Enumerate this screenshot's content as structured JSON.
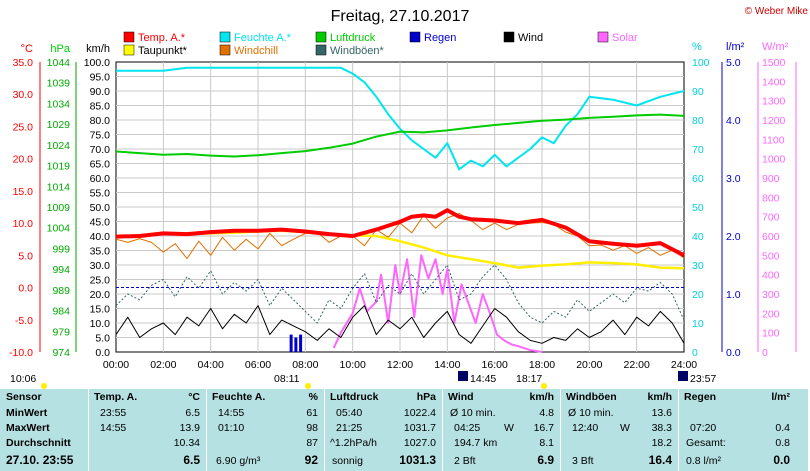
{
  "chart_data": {
    "type": "line",
    "title": "Freitag, 27.10.2017",
    "copyright": "© Weber Mike",
    "x_ticks": [
      "00:00",
      "02:00",
      "04:00",
      "06:00",
      "08:00",
      "10:00",
      "12:00",
      "14:00",
      "16:00",
      "18:00",
      "20:00",
      "22:00",
      "24:00"
    ],
    "x_range_hours": [
      0,
      24
    ],
    "axes": {
      "temp": {
        "unit": "°C",
        "ticks": [
          "35.0",
          "30.0",
          "25.0",
          "20.0",
          "15.0",
          "10.0",
          "5.0",
          "0.0",
          "-5.0",
          "-10.0"
        ],
        "range": [
          -10,
          35
        ],
        "color": "#ff0000"
      },
      "press": {
        "unit": "hPa",
        "ticks": [
          "1044",
          "1039",
          "1034",
          "1029",
          "1024",
          "1019",
          "1014",
          "1009",
          "1004",
          "999",
          "994",
          "989",
          "984",
          "979",
          "974"
        ],
        "range": [
          974,
          1044
        ],
        "color": "#00cc00"
      },
      "wind": {
        "unit": "km/h",
        "ticks": [
          "100.0",
          "95.0",
          "90.0",
          "85.0",
          "80.0",
          "75.0",
          "70.0",
          "65.0",
          "60.0",
          "55.0",
          "50.0",
          "45.0",
          "40.0",
          "35.0",
          "30.0",
          "25.0",
          "20.0",
          "15.0",
          "10.0",
          "5.0",
          "0.0"
        ],
        "range": [
          0,
          100
        ],
        "color": "#000000"
      },
      "hum": {
        "unit": "%",
        "ticks": [
          "100",
          "90",
          "80",
          "70",
          "60",
          "50",
          "40",
          "30",
          "20",
          "10",
          "0"
        ],
        "range": [
          0,
          100
        ],
        "color": "#00e5ee"
      },
      "rain": {
        "unit": "l/m²",
        "ticks": [
          "5.0",
          "4.0",
          "3.0",
          "2.0",
          "1.0",
          "0.0"
        ],
        "range": [
          0,
          5
        ],
        "color": "#0000cc"
      },
      "solar": {
        "unit": "W/m²",
        "ticks": [
          "1500",
          "1400",
          "1300",
          "1200",
          "1100",
          "1000",
          "900",
          "800",
          "700",
          "600",
          "500",
          "400",
          "300",
          "200",
          "100",
          "0"
        ],
        "range": [
          0,
          1500
        ],
        "color": "#ff66ff"
      }
    },
    "legend": [
      {
        "label": "Temp. A.*",
        "color": "#ff0000"
      },
      {
        "label": "Feuchte A.*",
        "color": "#00e5ee"
      },
      {
        "label": "Luftdruck",
        "color": "#00cc00"
      },
      {
        "label": "Regen",
        "color": "#0000cc"
      },
      {
        "label": "Wind",
        "color": "#000000"
      },
      {
        "label": "Solar",
        "color": "#ff66ff"
      },
      {
        "label": "Taupunkt*",
        "color": "#ffff00"
      },
      {
        "label": "Windchill",
        "color": "#e07000"
      },
      {
        "label": "Windböen*",
        "color": "#336666"
      }
    ],
    "series": [
      {
        "name": "Temp. A.*",
        "axis": "temp",
        "x": [
          0,
          1,
          2,
          3,
          4,
          5,
          6,
          7,
          8,
          9,
          10,
          11,
          12,
          12.5,
          13,
          13.5,
          14,
          14.5,
          15,
          16,
          17,
          18,
          19,
          20,
          21,
          22,
          23,
          24
        ],
        "y": [
          7.9,
          8.0,
          8.4,
          8.3,
          8.6,
          8.8,
          8.8,
          9.0,
          8.7,
          8.3,
          8.0,
          9.0,
          10.2,
          11.0,
          11.2,
          11.0,
          12.0,
          11.0,
          10.6,
          10.4,
          10.0,
          10.5,
          9.3,
          7.2,
          6.8,
          6.5,
          6.9,
          5.0
        ]
      },
      {
        "name": "Taupunkt*",
        "axis": "temp",
        "x": [
          0,
          1,
          2,
          3,
          4,
          5,
          6,
          7,
          8,
          9,
          10,
          11,
          12,
          13,
          14,
          15,
          16,
          17,
          18,
          19,
          20,
          21,
          22,
          23,
          24
        ],
        "y": [
          8.0,
          8.1,
          8.3,
          8.3,
          8.4,
          8.5,
          8.7,
          8.8,
          8.6,
          8.3,
          8.1,
          8.0,
          7.2,
          6.2,
          5.0,
          4.4,
          3.8,
          3.1,
          3.4,
          3.6,
          3.9,
          3.8,
          3.6,
          3.1,
          3.0
        ]
      },
      {
        "name": "Feuchte A.*",
        "axis": "hum",
        "x": [
          0,
          1,
          2,
          3,
          4,
          5,
          6,
          7,
          8,
          9,
          9.5,
          10,
          10.5,
          11,
          11.5,
          12,
          12.5,
          13,
          13.5,
          14,
          14.5,
          15,
          15.5,
          16,
          16.5,
          17,
          17.5,
          18,
          18.5,
          19,
          19.5,
          20,
          21,
          22,
          23,
          24
        ],
        "y": [
          97,
          97,
          97,
          98,
          98,
          98,
          98,
          98,
          98,
          98,
          98,
          96,
          93,
          88,
          82,
          77,
          73,
          70,
          67,
          72,
          63,
          66,
          64,
          68,
          64,
          67,
          70,
          74,
          72,
          78,
          82,
          88,
          87,
          85,
          88,
          90
        ]
      },
      {
        "name": "Luftdruck",
        "axis": "press",
        "x": [
          0,
          1,
          2,
          3,
          4,
          5,
          6,
          7,
          8,
          9,
          10,
          11,
          12,
          13,
          14,
          15,
          16,
          17,
          18,
          19,
          20,
          21,
          22,
          23,
          24
        ],
        "y": [
          1022.4,
          1022.0,
          1021.6,
          1021.8,
          1021.4,
          1021.2,
          1021.5,
          1022.0,
          1022.5,
          1023.3,
          1024.3,
          1026.0,
          1027.2,
          1027.0,
          1027.5,
          1028.2,
          1028.8,
          1029.3,
          1029.8,
          1030.1,
          1030.5,
          1030.8,
          1031.1,
          1031.3,
          1031.0
        ]
      },
      {
        "name": "Wind",
        "axis": "wind",
        "x": [
          0,
          0.5,
          1,
          1.5,
          2,
          2.5,
          3,
          3.5,
          4,
          4.5,
          5,
          5.5,
          6,
          6.5,
          7,
          7.5,
          8,
          8.5,
          9,
          9.5,
          10,
          10.5,
          11,
          11.5,
          12,
          12.5,
          13,
          13.5,
          14,
          14.5,
          15,
          15.5,
          16,
          16.5,
          17,
          17.5,
          18,
          18.5,
          19,
          19.5,
          20,
          20.5,
          21,
          21.5,
          22,
          22.5,
          23,
          23.5,
          24
        ],
        "y": [
          6,
          12,
          5,
          8,
          10,
          6,
          12,
          9,
          15,
          8,
          13,
          10,
          16,
          6,
          11,
          9,
          7,
          4,
          8,
          5,
          12,
          16,
          6,
          11,
          8,
          12,
          5,
          10,
          14,
          6,
          3,
          9,
          15,
          12,
          7,
          4,
          3,
          5,
          4,
          8,
          5,
          7,
          11,
          6,
          12,
          9,
          14,
          10,
          3
        ]
      },
      {
        "name": "Windböen*",
        "axis": "wind",
        "x": [
          0,
          0.5,
          1,
          1.5,
          2,
          2.5,
          3,
          3.5,
          4,
          4.5,
          5,
          5.5,
          6,
          6.5,
          7,
          7.5,
          8,
          8.5,
          9,
          9.5,
          10,
          10.5,
          11,
          11.5,
          12,
          12.5,
          13,
          13.5,
          14,
          14.5,
          15,
          15.5,
          16,
          16.5,
          17,
          17.5,
          18,
          18.5,
          19,
          19.5,
          20,
          20.5,
          21,
          21.5,
          22,
          22.5,
          23,
          23.5,
          24
        ],
        "y": [
          16,
          20,
          18,
          23,
          25,
          19,
          26,
          22,
          28,
          20,
          24,
          21,
          25,
          16,
          22,
          18,
          14,
          10,
          18,
          15,
          22,
          27,
          17,
          23,
          20,
          27,
          20,
          25,
          30,
          18,
          20,
          26,
          30,
          25,
          17,
          12,
          10,
          14,
          12,
          18,
          14,
          17,
          20,
          17,
          22,
          21,
          24,
          20,
          11
        ]
      },
      {
        "name": "Windchill",
        "axis": "temp",
        "x": [
          0,
          0.5,
          1,
          1.5,
          2,
          2.5,
          3,
          3.5,
          4,
          4.5,
          5,
          5.5,
          6,
          6.5,
          7,
          7.5,
          8,
          8.5,
          9,
          9.5,
          10,
          10.5,
          11,
          11.5,
          12,
          12.5,
          13,
          13.5,
          14,
          14.5,
          15,
          15.5,
          16,
          16.5,
          17,
          17.5,
          18,
          18.5,
          19,
          19.5,
          20,
          20.5,
          21,
          21.5,
          22,
          22.5,
          23,
          23.5,
          24
        ],
        "y": [
          7.5,
          7.0,
          7.6,
          7.0,
          5.5,
          6.8,
          4.5,
          7.2,
          5.0,
          7.8,
          5.8,
          7.5,
          6.0,
          8.4,
          6.5,
          7.5,
          8.4,
          8.6,
          7.0,
          8.0,
          8.0,
          6.5,
          9.0,
          7.8,
          10.0,
          8.5,
          11.2,
          9.2,
          10.8,
          11.5,
          10.4,
          9.0,
          10.0,
          9.0,
          9.8,
          10.0,
          10.1,
          9.8,
          8.6,
          8.0,
          6.5,
          6.6,
          5.8,
          6.5,
          5.3,
          6.2,
          5.0,
          5.8,
          4.6
        ]
      },
      {
        "name": "Solar",
        "axis": "solar",
        "x": [
          9.2,
          9.5,
          10,
          10.3,
          10.6,
          11,
          11.2,
          11.5,
          11.8,
          12,
          12.3,
          12.6,
          12.9,
          13.2,
          13.5,
          13.8,
          14,
          14.3,
          14.6,
          14.9,
          15.2,
          15.5,
          15.8,
          16.1,
          16.4,
          16.7,
          17,
          17.5,
          18
        ],
        "y": [
          20,
          100,
          200,
          330,
          210,
          260,
          400,
          150,
          450,
          300,
          480,
          180,
          500,
          380,
          480,
          300,
          430,
          150,
          350,
          250,
          150,
          300,
          200,
          90,
          60,
          40,
          30,
          10,
          0
        ]
      },
      {
        "name": "Regen",
        "axis": "rain",
        "x": [
          7.4,
          7.6,
          7.8
        ],
        "y": [
          0.3,
          0.25,
          0.3
        ]
      }
    ]
  },
  "markers": {
    "sunrise": "08:11",
    "sunset": "18:17",
    "moonrise": "14:45",
    "moonset": "23:57",
    "left_time": "10:06"
  },
  "stats": {
    "sensor": {
      "h1": "Sensor",
      "h2": "MinWert",
      "h3": "MaxWert",
      "h4": "Durchschnitt",
      "h5": "27.10. 23:55"
    },
    "temp": {
      "title": "Temp. A.",
      "unit": "°C",
      "min_t": "23:55",
      "min_v": "6.5",
      "max_t": "14:55",
      "max_v": "13.9",
      "avg": "10.34",
      "cur": "6.5"
    },
    "hum": {
      "title": "Feuchte A.",
      "unit": "%",
      "min_t": "14:55",
      "min_v": "61",
      "max_t": "01:10",
      "max_v": "98",
      "avg": "87",
      "abs": "6.90 g/m³",
      "cur": "92"
    },
    "press": {
      "title": "Luftdruck",
      "unit": "hPa",
      "min_t": "05:40",
      "min_v": "1022.4",
      "max_t": "21:25",
      "max_v": "1031.7",
      "trend": "^1.2hPa/h",
      "avg": "1027.0",
      "state": "sonnig",
      "cur": "1031.3"
    },
    "wind": {
      "title": "Wind",
      "unit": "km/h",
      "l1": "Ø 10 min.",
      "v1": "4.8",
      "l2": "04:25",
      "d2": "W",
      "v2": "16.7",
      "l3": "194.7 km",
      "v3": "8.1",
      "bft": "2 Bft",
      "cur": "6.9"
    },
    "gust": {
      "title": "Windböen",
      "unit": "km/h",
      "l1": "Ø 10 min.",
      "v1": "13.6",
      "l2": "12:40",
      "d2": "W",
      "v2": "38.3",
      "v3": "18.2",
      "bft": "3 Bft",
      "cur": "16.4"
    },
    "rain": {
      "title": "Regen",
      "unit": "l/m²",
      "l2": "07:20",
      "v2": "0.4",
      "l3": "Gesamt:",
      "v3": "0.8",
      "l4": "0.8 l/m²",
      "cur": "0.0"
    }
  }
}
